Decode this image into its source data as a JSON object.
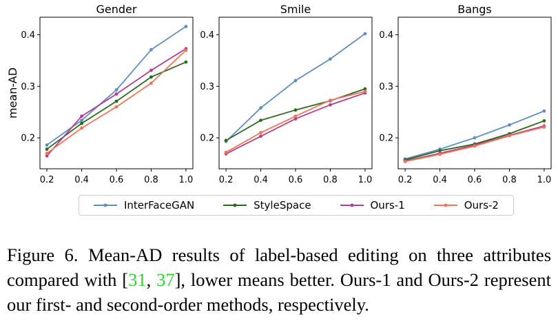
{
  "chart_data": [
    {
      "type": "line",
      "title": "Gender",
      "ylabel": "mean-AD",
      "xlabel": "",
      "x": [
        0.2,
        0.4,
        0.6,
        0.8,
        1.0
      ],
      "x_ticks": [
        "0.2",
        "0.4",
        "0.6",
        "0.8",
        "1.0"
      ],
      "y_ticks": [
        "0.2",
        "0.3",
        "0.4"
      ],
      "xlim": [
        0.16,
        1.04
      ],
      "ylim": [
        0.14,
        0.434
      ],
      "series": [
        {
          "name": "InterFaceGAN",
          "color": "#5b8ec4",
          "values": [
            0.186,
            0.234,
            0.293,
            0.371,
            0.416
          ]
        },
        {
          "name": "StyleSpace",
          "color": "#2a6a1a",
          "values": [
            0.178,
            0.228,
            0.271,
            0.318,
            0.347
          ]
        },
        {
          "name": "Ours-1",
          "color": "#b83c8e",
          "values": [
            0.165,
            0.242,
            0.285,
            0.331,
            0.373
          ]
        },
        {
          "name": "Ours-2",
          "color": "#ee7455",
          "values": [
            0.17,
            0.219,
            0.26,
            0.306,
            0.37
          ]
        }
      ]
    },
    {
      "type": "line",
      "title": "Smile",
      "ylabel": "",
      "xlabel": "",
      "x": [
        0.2,
        0.4,
        0.6,
        0.8,
        1.0
      ],
      "x_ticks": [
        "0.2",
        "0.4",
        "0.6",
        "0.8",
        "1.0"
      ],
      "y_ticks": [
        "0.2",
        "0.3",
        "0.4"
      ],
      "xlim": [
        0.16,
        1.04
      ],
      "ylim": [
        0.14,
        0.434
      ],
      "series": [
        {
          "name": "InterFaceGAN",
          "color": "#5b8ec4",
          "values": [
            0.193,
            0.258,
            0.311,
            0.353,
            0.402
          ]
        },
        {
          "name": "StyleSpace",
          "color": "#2a6a1a",
          "values": [
            0.195,
            0.234,
            0.254,
            0.272,
            0.295
          ]
        },
        {
          "name": "Ours-1",
          "color": "#b83c8e",
          "values": [
            0.169,
            0.203,
            0.237,
            0.264,
            0.287
          ]
        },
        {
          "name": "Ours-2",
          "color": "#ee7455",
          "values": [
            0.172,
            0.21,
            0.242,
            0.273,
            0.29
          ]
        }
      ]
    },
    {
      "type": "line",
      "title": "Bangs",
      "ylabel": "",
      "xlabel": "",
      "x": [
        0.2,
        0.4,
        0.6,
        0.8,
        1.0
      ],
      "x_ticks": [
        "0.2",
        "0.4",
        "0.6",
        "0.8",
        "1.0"
      ],
      "y_ticks": [
        "0.2",
        "0.3",
        "0.4"
      ],
      "xlim": [
        0.16,
        1.04
      ],
      "ylim": [
        0.14,
        0.434
      ],
      "series": [
        {
          "name": "InterFaceGAN",
          "color": "#5b8ec4",
          "values": [
            0.159,
            0.178,
            0.2,
            0.225,
            0.252
          ]
        },
        {
          "name": "StyleSpace",
          "color": "#2a6a1a",
          "values": [
            0.157,
            0.175,
            0.188,
            0.208,
            0.233
          ]
        },
        {
          "name": "Ours-1",
          "color": "#b83c8e",
          "values": [
            0.155,
            0.17,
            0.186,
            0.205,
            0.223
          ]
        },
        {
          "name": "Ours-2",
          "color": "#ee7455",
          "values": [
            0.154,
            0.168,
            0.184,
            0.204,
            0.221
          ]
        }
      ]
    }
  ],
  "legend": {
    "placement": "bottom-center",
    "items": [
      {
        "label": "InterFaceGAN",
        "color": "#5b8ec4"
      },
      {
        "label": "StyleSpace",
        "color": "#2a6a1a"
      },
      {
        "label": "Ours-1",
        "color": "#b83c8e"
      },
      {
        "label": "Ours-2",
        "color": "#ee7455"
      }
    ]
  },
  "caption": {
    "label": "Figure 6.",
    "text_before": "Mean-AD results of label-based editing on three attributes compared with [",
    "cite_1": "31",
    "cite_sep": ", ",
    "cite_2": "37",
    "text_after": "], lower means better. Ours-1 and Ours-2 represent our first- and second-order methods, respectively."
  }
}
